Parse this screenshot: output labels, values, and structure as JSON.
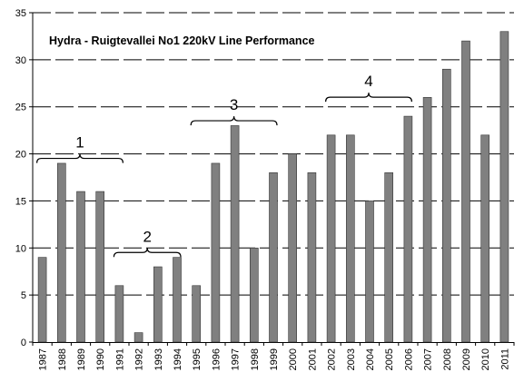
{
  "chart_data": {
    "type": "bar",
    "title": "Hydra - Ruigtevallei No1 220kV Line Performance",
    "xlabel": "",
    "ylabel": "",
    "ylim": [
      0,
      35
    ],
    "yticks": [
      "0",
      "5",
      "10",
      "15",
      "20",
      "25",
      "30",
      "35"
    ],
    "grid": "dashed horizontal",
    "bar_color": "#808080",
    "categories": [
      "1987",
      "1988",
      "1989",
      "1990",
      "1991",
      "1992",
      "1993",
      "1994",
      "1995",
      "1996",
      "1997",
      "1998",
      "1999",
      "2000",
      "2001",
      "2002",
      "2003",
      "2004",
      "2005",
      "2006",
      "2007",
      "2008",
      "2009",
      "2010",
      "2011"
    ],
    "values": [
      9,
      19,
      16,
      16,
      6,
      1,
      8,
      9,
      6,
      19,
      23,
      10,
      18,
      20,
      18,
      22,
      22,
      15,
      18,
      24,
      26,
      29,
      32,
      22,
      33
    ],
    "annotations": [
      {
        "label": "1",
        "from": "1987",
        "to": "1991",
        "y": 20
      },
      {
        "label": "2",
        "from": "1991",
        "to": "1994",
        "y": 10
      },
      {
        "label": "3",
        "from": "1995",
        "to": "1999",
        "y": 24
      },
      {
        "label": "4",
        "from": "2002",
        "to": "2006",
        "y": 26.5
      }
    ]
  }
}
